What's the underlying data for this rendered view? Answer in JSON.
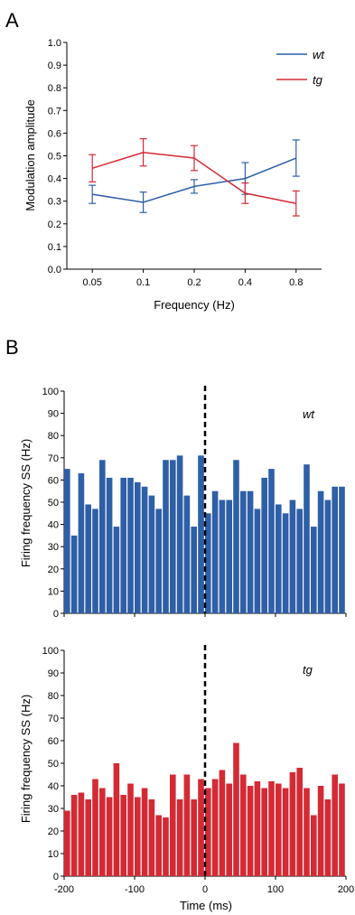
{
  "panels": {
    "a": "A",
    "b": "B"
  },
  "colors": {
    "wt": "#2e5fa7",
    "tg": "#d42a34"
  },
  "chart_data": [
    {
      "type": "line",
      "panel": "A",
      "xlabel": "Frequency (Hz)",
      "ylabel": "Modulation amplitude",
      "categories": [
        "0.05",
        "0.1",
        "0.2",
        "0.4",
        "0.8"
      ],
      "ylim": [
        0,
        1.0
      ],
      "yticks": [
        "0.0",
        "0.1",
        "0.2",
        "0.3",
        "0.4",
        "0.5",
        "0.6",
        "0.7",
        "0.8",
        "0.9",
        "1.0"
      ],
      "legend_position": "top-right",
      "grid": false,
      "series": [
        {
          "name": "wt",
          "color": "#2e5fa7",
          "values": [
            0.33,
            0.295,
            0.365,
            0.4,
            0.49
          ],
          "errors": [
            0.04,
            0.045,
            0.03,
            0.07,
            0.08
          ]
        },
        {
          "name": "tg",
          "color": "#d42a34",
          "values": [
            0.445,
            0.515,
            0.49,
            0.335,
            0.29
          ],
          "errors": [
            0.06,
            0.06,
            0.055,
            0.045,
            0.055
          ]
        }
      ]
    },
    {
      "type": "bar",
      "panel": "B-top",
      "label": "wt",
      "color": "#2e5fa7",
      "ylabel": "Firing frequency SS (Hz)",
      "ylim": [
        0,
        100
      ],
      "yticks": [
        "0",
        "10",
        "20",
        "30",
        "40",
        "50",
        "60",
        "70",
        "80",
        "90",
        "100"
      ],
      "xlim": [
        -200,
        200
      ],
      "bin_width": 10,
      "bin_starts": [
        -200,
        -190,
        -180,
        -170,
        -160,
        -150,
        -140,
        -130,
        -120,
        -110,
        -100,
        -90,
        -80,
        -70,
        -60,
        -50,
        -40,
        -30,
        -20,
        -10,
        0,
        10,
        20,
        30,
        40,
        50,
        60,
        70,
        80,
        90,
        100,
        110,
        120,
        130,
        140,
        150,
        160,
        170,
        180,
        190
      ],
      "values": [
        65,
        35,
        63,
        49,
        47,
        69,
        61,
        39,
        61,
        61,
        59,
        57,
        53,
        47,
        69,
        69,
        71,
        53,
        39,
        71,
        45,
        55,
        51,
        51,
        69,
        55,
        55,
        47,
        61,
        65,
        49,
        45,
        51,
        47,
        67,
        39,
        55,
        51,
        57,
        57
      ],
      "marker_x": 0
    },
    {
      "type": "bar",
      "panel": "B-bottom",
      "label": "tg",
      "color": "#d42a34",
      "ylabel": "Firing frequency SS (Hz)",
      "xlabel": "Time (ms)",
      "ylim": [
        0,
        100
      ],
      "yticks": [
        "0",
        "10",
        "20",
        "30",
        "40",
        "50",
        "60",
        "70",
        "80",
        "90",
        "100"
      ],
      "xlim": [
        -200,
        200
      ],
      "xticks": [
        "-200",
        "-100",
        "0",
        "100",
        "200"
      ],
      "bin_width": 10,
      "bin_starts": [
        -200,
        -190,
        -180,
        -170,
        -160,
        -150,
        -140,
        -130,
        -120,
        -110,
        -100,
        -90,
        -80,
        -70,
        -60,
        -50,
        -40,
        -30,
        -20,
        -10,
        0,
        10,
        20,
        30,
        40,
        50,
        60,
        70,
        80,
        90,
        100,
        110,
        120,
        130,
        140,
        150,
        160,
        170,
        180,
        190
      ],
      "values": [
        29,
        36,
        37,
        34,
        43,
        39,
        35,
        50,
        36,
        41,
        35,
        39,
        34,
        27,
        26,
        45,
        34,
        45,
        34,
        43,
        39,
        43,
        47,
        41,
        59,
        45,
        40,
        42,
        39,
        42,
        41,
        39,
        46,
        48,
        39,
        27,
        40,
        34,
        45,
        41
      ],
      "marker_x": 0
    }
  ]
}
